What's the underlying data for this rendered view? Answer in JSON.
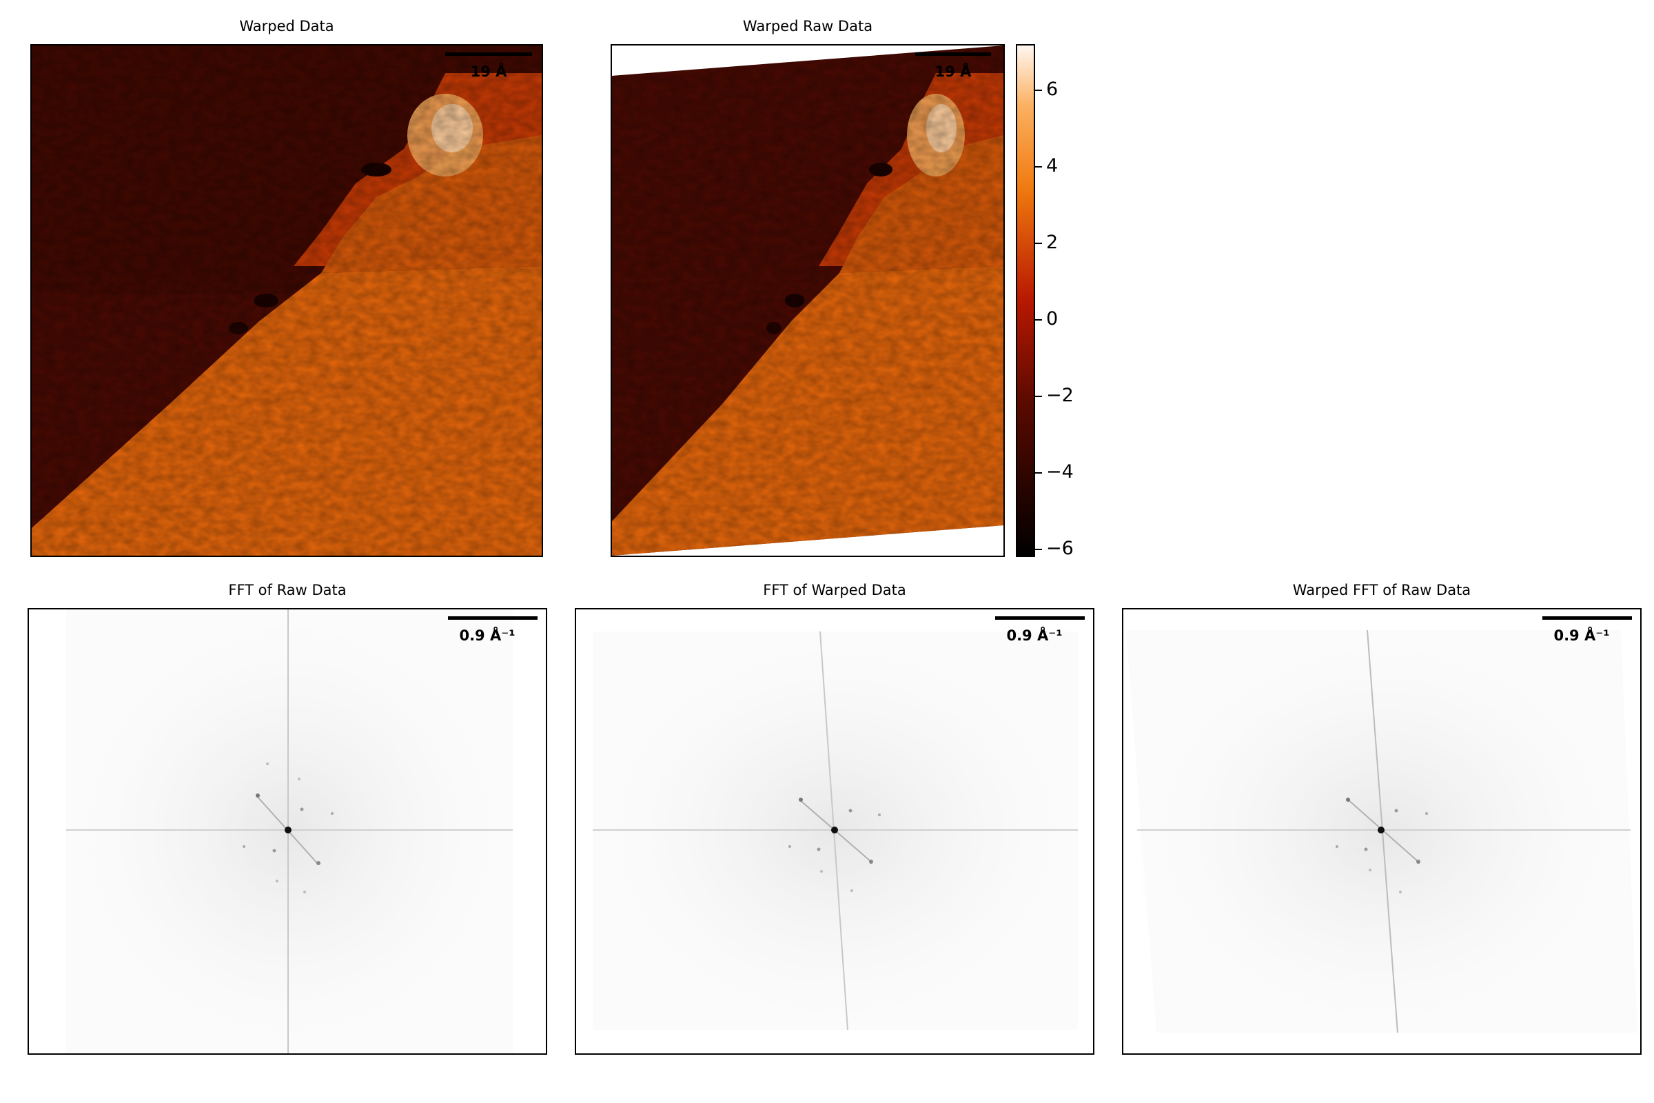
{
  "panels": {
    "warped_data": {
      "title": "Warped Data",
      "scale_label": "19 Å"
    },
    "warped_raw_data": {
      "title": "Warped Raw Data",
      "scale_label": "19 Å"
    },
    "fft_raw": {
      "title": "FFT of Raw Data",
      "scale_label": "0.9 Å⁻¹"
    },
    "fft_warped": {
      "title": "FFT of Warped Data",
      "scale_label": "0.9 Å⁻¹"
    },
    "warped_fft_raw": {
      "title": "Warped FFT of Raw Data",
      "scale_label": "0.9 Å⁻¹"
    }
  },
  "colorbar": {
    "colormap": "gist_heat",
    "range": [
      -6.2,
      7.2
    ],
    "ticks": [
      {
        "value": 6,
        "label": "6"
      },
      {
        "value": 4,
        "label": "4"
      },
      {
        "value": 2,
        "label": "2"
      },
      {
        "value": 0,
        "label": "0"
      },
      {
        "value": -2,
        "label": "−2"
      },
      {
        "value": -4,
        "label": "−4"
      },
      {
        "value": -6,
        "label": "−6"
      }
    ]
  },
  "colors": {
    "low": "#000000",
    "dark_terrace": "#4a0a02",
    "mid": "#c01e00",
    "bright_terrace": "#f07a10",
    "high": "#fff2e6"
  }
}
